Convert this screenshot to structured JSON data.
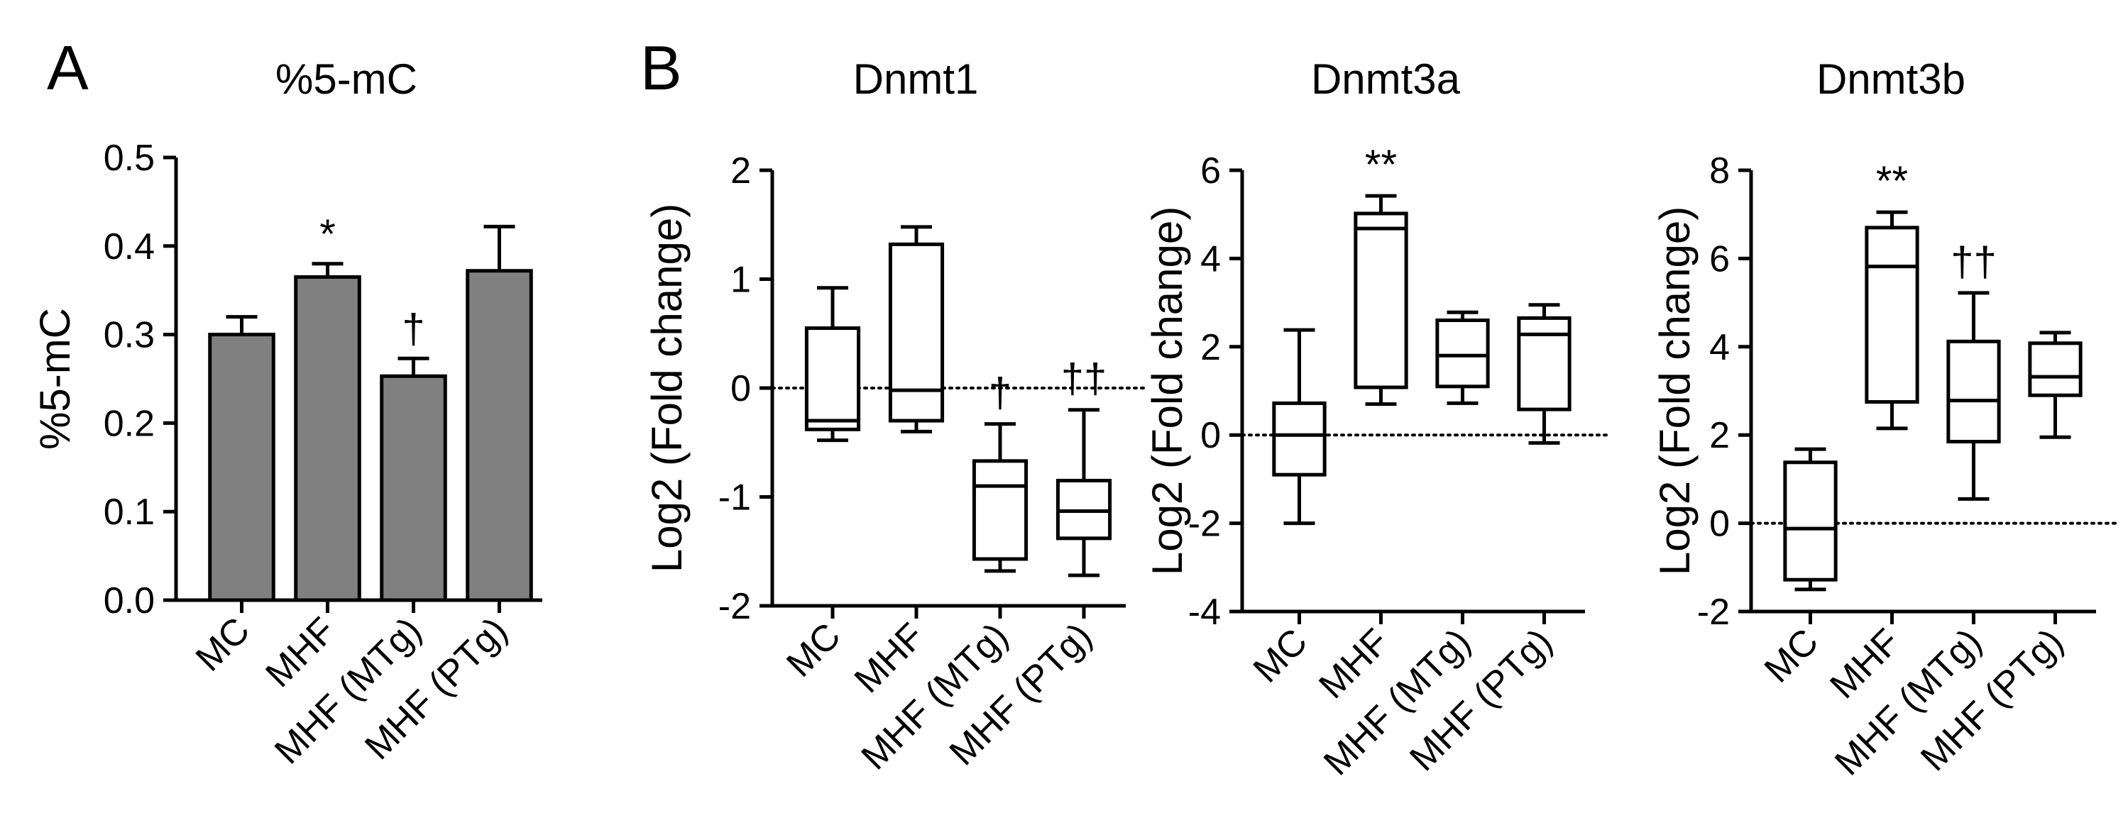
{
  "figure": {
    "panel_a_letter": "A",
    "panel_b_letter": "B"
  },
  "colors": {
    "bar_fill": "#808080",
    "stroke": "#000000",
    "background": "#ffffff"
  },
  "chart_data": [
    {
      "id": "pct5mc",
      "type": "bar",
      "title": "%5-mC",
      "xlabel": "",
      "ylabel": "%5-mC",
      "ylim": [
        0.0,
        0.5
      ],
      "yticks": [
        0.0,
        0.1,
        0.2,
        0.3,
        0.4,
        0.5
      ],
      "ytick_labels": [
        "0.0",
        "0.1",
        "0.2",
        "0.3",
        "0.4",
        "0.5"
      ],
      "categories": [
        "MC",
        "MHF",
        "MHF (MTg)",
        "MHF (PTg)"
      ],
      "values": [
        0.3,
        0.365,
        0.253,
        0.372
      ],
      "errors": [
        0.02,
        0.015,
        0.02,
        0.05
      ],
      "annotations": [
        "",
        "*",
        "†",
        ""
      ],
      "grid": false
    },
    {
      "id": "dnmt1",
      "type": "box",
      "title": "Dnmt1",
      "xlabel": "",
      "ylabel": "Log2 (Fold change)",
      "ylim": [
        -2,
        2
      ],
      "yticks": [
        -2,
        -1,
        0,
        1,
        2
      ],
      "ytick_labels": [
        "-2",
        "-1",
        "0",
        "1",
        "2"
      ],
      "reference_line": 0,
      "categories": [
        "MC",
        "MHF",
        "MHF (MTg)",
        "MHF (PTg)"
      ],
      "boxes": [
        {
          "min": -0.48,
          "q1": -0.38,
          "median": -0.3,
          "q3": 0.55,
          "max": 0.92
        },
        {
          "min": -0.4,
          "q1": -0.3,
          "median": -0.02,
          "q3": 1.32,
          "max": 1.48
        },
        {
          "min": -1.68,
          "q1": -1.57,
          "median": -0.9,
          "q3": -0.67,
          "max": -0.33
        },
        {
          "min": -1.72,
          "q1": -1.38,
          "median": -1.13,
          "q3": -0.85,
          "max": -0.2
        }
      ],
      "annotations": [
        "",
        "",
        "†",
        "††"
      ],
      "grid": false
    },
    {
      "id": "dnmt3a",
      "type": "box",
      "title": "Dnmt3a",
      "xlabel": "",
      "ylabel": "Log2 (Fold change)",
      "ylim": [
        -4,
        6
      ],
      "yticks": [
        -4,
        -2,
        0,
        2,
        4,
        6
      ],
      "ytick_labels": [
        "-4",
        "-2",
        "0",
        "2",
        "4",
        "6"
      ],
      "reference_line": 0,
      "categories": [
        "MC",
        "MHF",
        "MHF (MTg)",
        "MHF (PTg)"
      ],
      "boxes": [
        {
          "min": -2.0,
          "q1": -0.9,
          "median": 0.0,
          "q3": 0.72,
          "max": 2.38
        },
        {
          "min": 0.7,
          "q1": 1.08,
          "median": 4.68,
          "q3": 5.02,
          "max": 5.42
        },
        {
          "min": 0.72,
          "q1": 1.1,
          "median": 1.8,
          "q3": 2.6,
          "max": 2.78
        },
        {
          "min": -0.18,
          "q1": 0.58,
          "median": 2.28,
          "q3": 2.65,
          "max": 2.95
        }
      ],
      "annotations": [
        "",
        "**",
        "",
        ""
      ],
      "grid": false
    },
    {
      "id": "dnmt3b",
      "type": "box",
      "title": "Dnmt3b",
      "xlabel": "",
      "ylabel": "Log2 (Fold change)",
      "ylim": [
        -2,
        8
      ],
      "yticks": [
        -2,
        0,
        2,
        4,
        6,
        8
      ],
      "ytick_labels": [
        "-2",
        "0",
        "2",
        "4",
        "6",
        "8"
      ],
      "reference_line": 0,
      "categories": [
        "MC",
        "MHF",
        "MHF (MTg)",
        "MHF (PTg)"
      ],
      "boxes": [
        {
          "min": -1.5,
          "q1": -1.28,
          "median": -0.12,
          "q3": 1.38,
          "max": 1.68
        },
        {
          "min": 2.15,
          "q1": 2.75,
          "median": 5.82,
          "q3": 6.7,
          "max": 7.05
        },
        {
          "min": 0.55,
          "q1": 1.85,
          "median": 2.78,
          "q3": 4.12,
          "max": 5.22
        },
        {
          "min": 1.95,
          "q1": 2.9,
          "median": 3.32,
          "q3": 4.08,
          "max": 4.32
        }
      ],
      "annotations": [
        "",
        "**",
        "††",
        ""
      ],
      "grid": false
    }
  ]
}
